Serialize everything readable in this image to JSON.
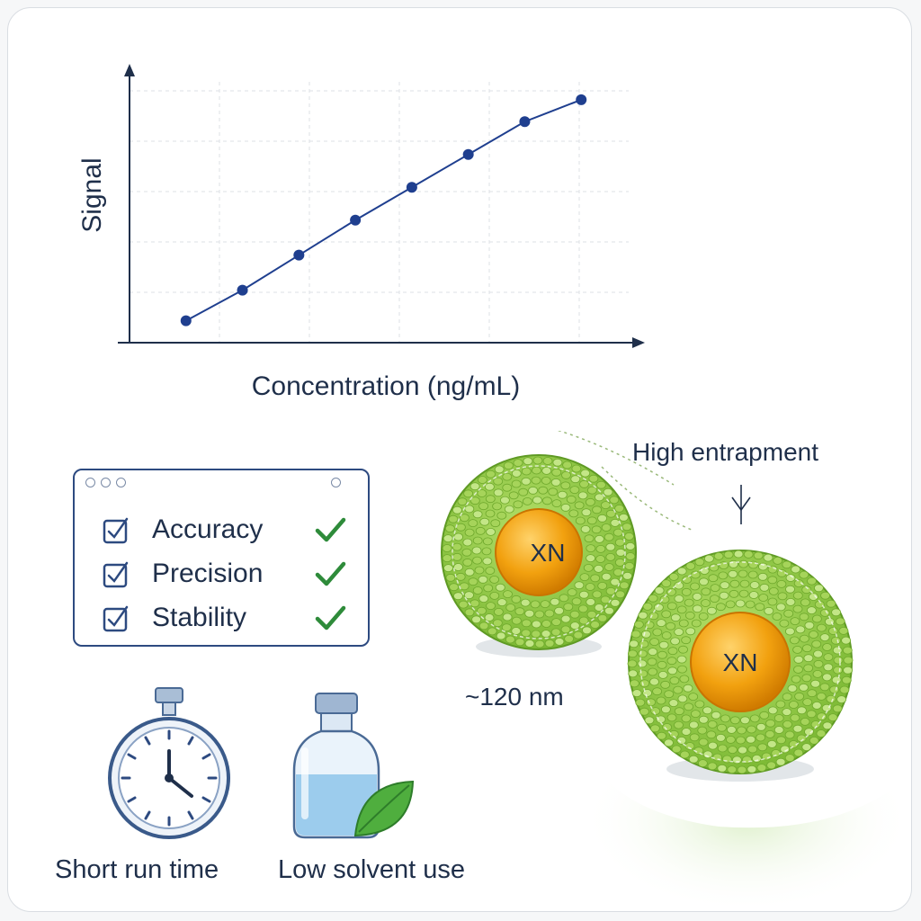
{
  "chart_data": {
    "type": "line",
    "xlabel": "Concentration (ng/mL)",
    "ylabel": "Signal",
    "title": "",
    "x": [
      1,
      2,
      3,
      4,
      5,
      6,
      7,
      8
    ],
    "y": [
      1.0,
      2.4,
      4.0,
      5.6,
      7.1,
      8.6,
      10.1,
      11.1
    ],
    "xlim": [
      0,
      9
    ],
    "ylim": [
      0,
      12
    ],
    "grid": true,
    "color": "#1f3f8f"
  },
  "validation": {
    "items": [
      {
        "label": "Accuracy"
      },
      {
        "label": "Precision"
      },
      {
        "label": "Stability"
      }
    ],
    "check_color": "#2e8b3a"
  },
  "features": {
    "run_time": "Short run time",
    "solvent": "Low solvent use"
  },
  "nanoparticle": {
    "core_label_1": "XN",
    "core_label_2": "XN",
    "entrapment": "High entrapment",
    "size": "~120 nm",
    "shell_color": "#8cc63f",
    "core_color": "#f2a10f"
  }
}
